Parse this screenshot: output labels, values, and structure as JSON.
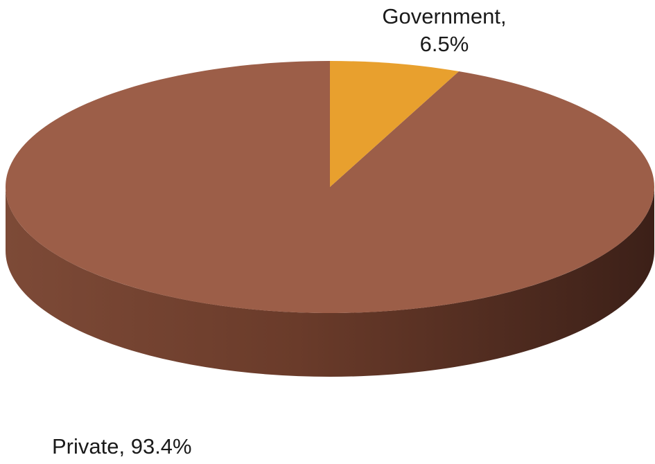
{
  "chart_data": {
    "type": "pie",
    "style": "3d",
    "slices": [
      {
        "label": "Government",
        "value": 6.5,
        "display": "Government,\n6.5%",
        "color": "#E8A02E"
      },
      {
        "label": "Private",
        "value": 93.4,
        "display": "Private, 93.4%",
        "color": "#9C5E48"
      }
    ],
    "legend": "none",
    "side_color": "#6E3E2C"
  }
}
